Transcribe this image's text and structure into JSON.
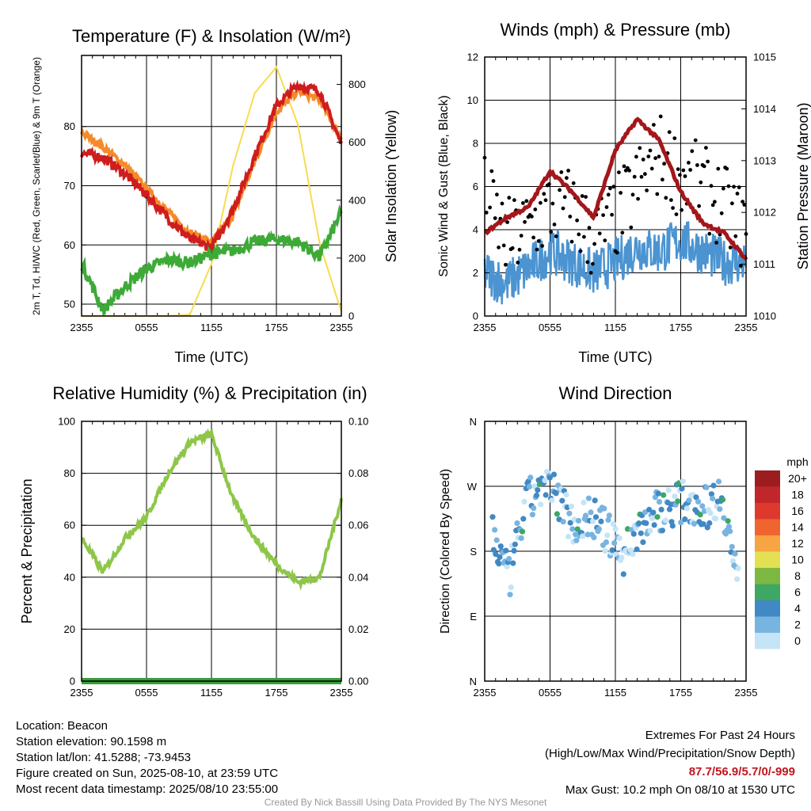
{
  "colors": {
    "temp_red": "#cf1d1d",
    "dewpoint_green": "#3daa37",
    "temp9m_orange": "#f58a2a",
    "insolation_yellow": "#f7dc4f",
    "wind_blue": "#4b94d1",
    "gust_black": "#000000",
    "pressure_maroon": "#a3171b",
    "rh_green": "#8ec64a",
    "precip_green": "#3a9d3a",
    "extremes_red": "#c0161f"
  },
  "time_ticks": [
    "2355",
    "0555",
    "1155",
    "1755",
    "2355"
  ],
  "chart_data": [
    {
      "type": "line",
      "title": "Temperature (F) & Insolation (W/m²)",
      "xlabel": "Time (UTC)",
      "ylabel": "2m T, Td, HI/WC (Red, Green, Scarlet/Blue) & 9m T (Orange)",
      "y2label": "Solar Insolation (Yellow)",
      "x": [
        "2355",
        "0155",
        "0355",
        "0555",
        "0755",
        "0955",
        "1155",
        "1355",
        "1555",
        "1755",
        "1955",
        "2155",
        "2355"
      ],
      "ylim": [
        48,
        92
      ],
      "y2lim": [
        0,
        900
      ],
      "yticks": [
        50,
        60,
        70,
        80
      ],
      "y2ticks": [
        0,
        200,
        400,
        600,
        800
      ],
      "series": [
        {
          "name": "2m T",
          "axis": "left",
          "values": [
            75.5,
            74.8,
            72.0,
            68.5,
            64.5,
            61.0,
            59.5,
            66.0,
            75.0,
            83.5,
            87.0,
            86.0,
            77.0
          ]
        },
        {
          "name": "9m T",
          "axis": "left",
          "values": [
            79.0,
            76.5,
            73.5,
            69.5,
            65.5,
            62.0,
            60.5,
            65.0,
            74.0,
            82.5,
            86.0,
            84.5,
            78.0
          ]
        },
        {
          "name": "Td",
          "axis": "left",
          "values": [
            57.0,
            49.0,
            53.0,
            56.0,
            57.5,
            57.0,
            58.5,
            59.0,
            60.5,
            61.0,
            60.5,
            58.0,
            65.5
          ]
        },
        {
          "name": "Solar Insolation",
          "axis": "right",
          "values": [
            0,
            0,
            0,
            0,
            0,
            5,
            180,
            520,
            770,
            860,
            660,
            250,
            15
          ]
        }
      ]
    },
    {
      "type": "line",
      "title": "Winds (mph) & Pressure (mb)",
      "xlabel": "Time (UTC)",
      "ylabel": "Sonic Wind & Gust (Blue, Black)",
      "y2label": "Station Pressure (Maroon)",
      "x": [
        "2355",
        "0155",
        "0355",
        "0555",
        "0755",
        "0955",
        "1155",
        "1355",
        "1555",
        "1755",
        "1955",
        "2155",
        "2355"
      ],
      "ylim": [
        0,
        12
      ],
      "y2lim": [
        1010,
        1015
      ],
      "yticks": [
        0,
        2,
        4,
        6,
        8,
        10,
        12
      ],
      "y2ticks": [
        1010,
        1011,
        1012,
        1013,
        1014,
        1015
      ],
      "series": [
        {
          "name": "Sonic Wind",
          "axis": "left",
          "values": [
            2.0,
            1.5,
            2.2,
            3.0,
            2.5,
            2.0,
            2.5,
            3.2,
            3.0,
            3.5,
            3.0,
            2.5,
            2.5
          ]
        },
        {
          "name": "Gust",
          "axis": "left",
          "values": [
            5.5,
            3.5,
            4.0,
            5.0,
            5.0,
            3.5,
            4.5,
            6.0,
            7.5,
            6.5,
            6.0,
            5.0,
            4.0
          ]
        },
        {
          "name": "Station Pressure",
          "axis": "right",
          "values": [
            1011.6,
            1011.9,
            1012.1,
            1012.8,
            1012.4,
            1011.9,
            1013.2,
            1013.8,
            1013.4,
            1012.4,
            1011.8,
            1011.6,
            1011.1
          ]
        }
      ]
    },
    {
      "type": "line",
      "title": "Relative Humidity (%) & Precipitation (in)",
      "ylabel": "Percent & Precipitation",
      "x": [
        "2355",
        "0155",
        "0355",
        "0555",
        "0755",
        "0955",
        "1155",
        "1355",
        "1555",
        "1755",
        "1955",
        "2155",
        "2355"
      ],
      "ylim": [
        0,
        100
      ],
      "y2lim": [
        0,
        0.1
      ],
      "yticks": [
        0,
        20,
        40,
        60,
        80,
        100
      ],
      "y2ticks": [
        "0.00",
        "0.02",
        "0.04",
        "0.06",
        "0.08",
        "0.10"
      ],
      "series": [
        {
          "name": "Relative Humidity",
          "axis": "left",
          "values": [
            55,
            42,
            55,
            63,
            80,
            92,
            95,
            70,
            55,
            45,
            38,
            40,
            70
          ]
        },
        {
          "name": "Precipitation",
          "axis": "right",
          "values": [
            0,
            0,
            0,
            0,
            0,
            0,
            0,
            0,
            0,
            0,
            0,
            0,
            0
          ]
        }
      ]
    },
    {
      "type": "scatter",
      "title": "Wind Direction",
      "ylabel": "Direction (Colored By Speed)",
      "yticks": [
        "N",
        "E",
        "S",
        "W",
        "N"
      ],
      "ylim": [
        0,
        360
      ],
      "legend_title": "mph",
      "legend_labels": [
        "20+",
        "18",
        "16",
        "14",
        "12",
        "10",
        "8",
        "6",
        "4",
        "2",
        "0"
      ],
      "legend_colors": [
        "#9c1d20",
        "#c1262b",
        "#dd3a2d",
        "#ef6530",
        "#f7a443",
        "#e4e054",
        "#7db842",
        "#3ea764",
        "#4189c4",
        "#78b4e0",
        "#c4e4f7"
      ],
      "x": [
        "0030",
        "0200",
        "0330",
        "0500",
        "0630",
        "0800",
        "0930",
        "1100",
        "1230",
        "1400",
        "1530",
        "1700",
        "1830",
        "2000",
        "2130",
        "2300"
      ],
      "values": [
        205,
        140,
        245,
        270,
        255,
        215,
        230,
        205,
        175,
        215,
        235,
        245,
        250,
        240,
        260,
        130
      ]
    }
  ],
  "info": {
    "location": "Location: Beacon",
    "elevation": "Station elevation: 90.1598 m",
    "latlon": "Station lat/lon: 41.5288; -73.9453",
    "created": "Figure created on Sun, 2025-08-10, at 23:59 UTC",
    "recent": "Most recent data timestamp: 2025/08/10 23:55:00"
  },
  "extremes": {
    "title": "Extremes For Past 24 Hours",
    "subtitle": "(High/Low/Max Wind/Precipitation/Snow Depth)",
    "values": "87.7/56.9/5.7/0/-999",
    "gust": "Max Gust: 10.2 mph On 08/10 at 1530 UTC"
  },
  "credit": "Created By Nick Bassill Using Data Provided By The NYS Mesonet"
}
